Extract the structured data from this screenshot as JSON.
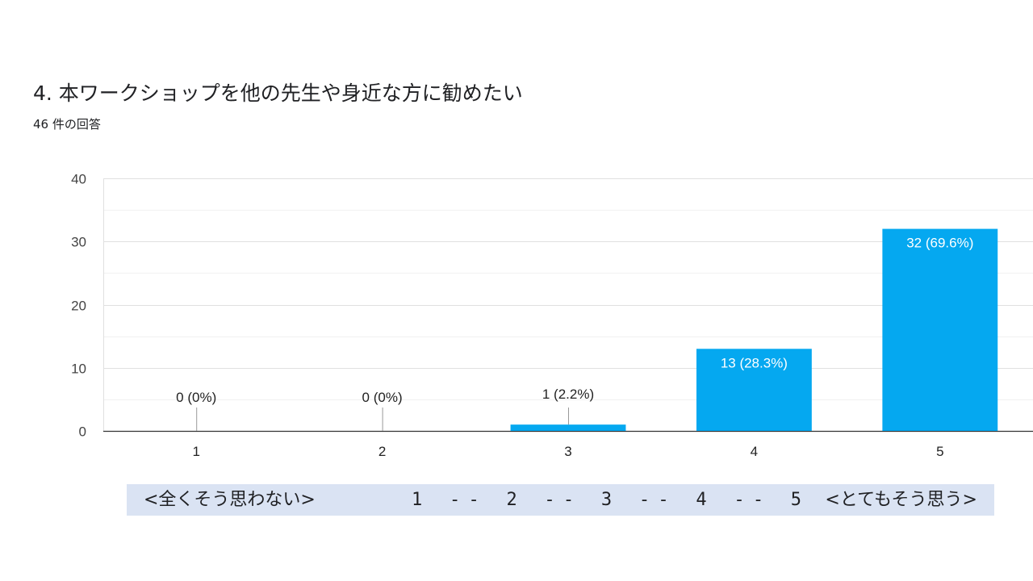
{
  "header": {
    "title": "4. 本ワークショップを他の先生や身近な方に勧めたい",
    "response_count": "46 件の回答"
  },
  "chart_data": {
    "type": "bar",
    "categories": [
      "1",
      "2",
      "3",
      "4",
      "5"
    ],
    "values": [
      0,
      0,
      1,
      13,
      32
    ],
    "data_labels": [
      "0 (0%)",
      "0 (0%)",
      "1 (2.2%)",
      "13 (28.3%)",
      "32 (69.6%)"
    ],
    "ylim": [
      0,
      40
    ],
    "yticks": [
      0,
      10,
      20,
      30,
      40
    ],
    "minor_gridlines": [
      5,
      15,
      25,
      35
    ],
    "grid": true,
    "legend": "none",
    "bar_color": "#05a8f0"
  },
  "scale_legend": {
    "left": "<全くそう思わない>",
    "middle": "1 -- 2 -- 3 -- 4 -- 5",
    "right": "<とてもそう思う>"
  },
  "colors": {
    "bar": "#05a8f0",
    "band": "#dae3f3",
    "text": "#202124"
  }
}
